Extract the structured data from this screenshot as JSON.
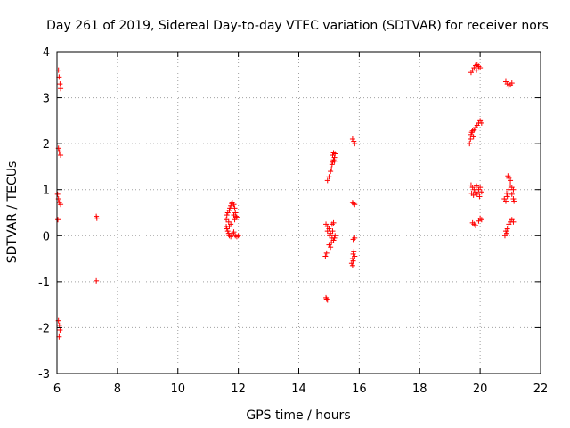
{
  "chart_data": {
    "type": "scatter",
    "title": "Day 261 of 2019, Sidereal Day-to-day VTEC variation (SDTVAR) for receiver nors",
    "xlabel": "GPS time / hours",
    "ylabel": "SDTVAR / TECUs",
    "xlim": [
      6,
      22
    ],
    "ylim": [
      -3,
      4
    ],
    "xticks": [
      "6",
      "8",
      "10",
      "12",
      "14",
      "16",
      "18",
      "20",
      "22"
    ],
    "yticks": [
      "-3",
      "-2",
      "-1",
      "0",
      "1",
      "2",
      "3",
      "4"
    ],
    "grid": true,
    "marker": "+",
    "color": "#ff0000",
    "series": [
      {
        "name": "SDTVAR",
        "points": [
          [
            6.05,
            3.6
          ],
          [
            6.07,
            3.45
          ],
          [
            6.1,
            3.3
          ],
          [
            6.12,
            3.2
          ],
          [
            6.05,
            1.9
          ],
          [
            6.08,
            1.82
          ],
          [
            6.12,
            1.75
          ],
          [
            6.02,
            0.9
          ],
          [
            6.05,
            0.8
          ],
          [
            6.08,
            0.72
          ],
          [
            6.12,
            0.68
          ],
          [
            6.03,
            0.35
          ],
          [
            6.05,
            -1.85
          ],
          [
            6.08,
            -1.95
          ],
          [
            6.1,
            -2.05
          ],
          [
            6.07,
            -2.2
          ],
          [
            7.3,
            0.42
          ],
          [
            7.32,
            0.38
          ],
          [
            7.3,
            -0.98
          ],
          [
            11.6,
            0.35
          ],
          [
            11.62,
            0.45
          ],
          [
            11.65,
            0.5
          ],
          [
            11.7,
            0.55
          ],
          [
            11.72,
            0.6
          ],
          [
            11.75,
            0.65
          ],
          [
            11.78,
            0.7
          ],
          [
            11.8,
            0.72
          ],
          [
            11.85,
            0.68
          ],
          [
            11.88,
            0.6
          ],
          [
            11.9,
            0.5
          ],
          [
            11.85,
            0.45
          ],
          [
            11.92,
            0.42
          ],
          [
            11.95,
            0.4
          ],
          [
            11.88,
            0.35
          ],
          [
            11.62,
            0.15
          ],
          [
            11.65,
            0.1
          ],
          [
            11.68,
            0.05
          ],
          [
            11.7,
            0.0
          ],
          [
            11.75,
            -0.02
          ],
          [
            11.8,
            0.05
          ],
          [
            11.85,
            0.08
          ],
          [
            11.9,
            0.0
          ],
          [
            11.95,
            -0.02
          ],
          [
            12.0,
            0.0
          ],
          [
            11.7,
            0.2
          ],
          [
            11.75,
            0.25
          ],
          [
            11.6,
            0.2
          ],
          [
            11.68,
            0.3
          ],
          [
            14.9,
            -1.35
          ],
          [
            14.95,
            -1.4
          ],
          [
            14.92,
            -1.38
          ],
          [
            14.88,
            -0.45
          ],
          [
            14.92,
            -0.38
          ],
          [
            14.9,
            0.25
          ],
          [
            14.95,
            0.2
          ],
          [
            15.0,
            0.15
          ],
          [
            15.05,
            0.05
          ],
          [
            15.1,
            -0.05
          ],
          [
            15.15,
            -0.1
          ],
          [
            15.2,
            0.0
          ],
          [
            15.08,
            -0.15
          ],
          [
            15.0,
            -0.2
          ],
          [
            14.95,
            0.1
          ],
          [
            15.12,
            0.1
          ],
          [
            15.18,
            -0.05
          ],
          [
            15.05,
            -0.25
          ],
          [
            15.1,
            0.25
          ],
          [
            15.15,
            0.28
          ],
          [
            15.02,
            0.0
          ],
          [
            14.95,
            1.2
          ],
          [
            15.0,
            1.28
          ],
          [
            15.05,
            1.4
          ],
          [
            15.08,
            1.45
          ],
          [
            15.1,
            1.55
          ],
          [
            15.12,
            1.6
          ],
          [
            15.15,
            1.65
          ],
          [
            15.18,
            1.7
          ],
          [
            15.12,
            1.75
          ],
          [
            15.15,
            1.8
          ],
          [
            15.2,
            1.78
          ],
          [
            15.18,
            1.62
          ],
          [
            15.75,
            -0.6
          ],
          [
            15.78,
            -0.5
          ],
          [
            15.8,
            -0.4
          ],
          [
            15.82,
            -0.35
          ],
          [
            15.85,
            -0.45
          ],
          [
            15.8,
            -0.55
          ],
          [
            15.78,
            -0.65
          ],
          [
            15.85,
            -0.05
          ],
          [
            15.8,
            -0.08
          ],
          [
            15.78,
            0.72
          ],
          [
            15.82,
            0.7
          ],
          [
            15.85,
            0.68
          ],
          [
            15.78,
            2.1
          ],
          [
            15.82,
            2.05
          ],
          [
            15.85,
            2.0
          ],
          [
            19.7,
            3.55
          ],
          [
            19.75,
            3.6
          ],
          [
            19.8,
            3.65
          ],
          [
            19.85,
            3.7
          ],
          [
            19.9,
            3.72
          ],
          [
            19.95,
            3.68
          ],
          [
            20.0,
            3.65
          ],
          [
            19.88,
            3.6
          ],
          [
            19.65,
            2.0
          ],
          [
            19.68,
            2.1
          ],
          [
            19.7,
            2.2
          ],
          [
            19.72,
            2.25
          ],
          [
            19.75,
            2.28
          ],
          [
            19.8,
            2.3
          ],
          [
            19.85,
            2.35
          ],
          [
            19.9,
            2.4
          ],
          [
            19.95,
            2.45
          ],
          [
            20.0,
            2.5
          ],
          [
            20.05,
            2.45
          ],
          [
            19.78,
            2.15
          ],
          [
            19.7,
            1.1
          ],
          [
            19.75,
            1.05
          ],
          [
            19.8,
            1.0
          ],
          [
            19.85,
            0.95
          ],
          [
            19.9,
            0.9
          ],
          [
            19.95,
            1.0
          ],
          [
            20.0,
            1.05
          ],
          [
            20.05,
            0.95
          ],
          [
            19.78,
            0.88
          ],
          [
            19.88,
            1.08
          ],
          [
            19.72,
            0.92
          ],
          [
            19.98,
            0.85
          ],
          [
            19.75,
            0.28
          ],
          [
            19.8,
            0.25
          ],
          [
            19.85,
            0.22
          ],
          [
            19.95,
            0.32
          ],
          [
            20.0,
            0.38
          ],
          [
            20.05,
            0.35
          ],
          [
            20.85,
            3.35
          ],
          [
            20.9,
            3.3
          ],
          [
            20.95,
            3.25
          ],
          [
            21.0,
            3.28
          ],
          [
            21.05,
            3.32
          ],
          [
            20.8,
            0.8
          ],
          [
            20.85,
            0.75
          ],
          [
            20.9,
            0.85
          ],
          [
            20.95,
            1.0
          ],
          [
            21.0,
            1.1
          ],
          [
            21.05,
            1.05
          ],
          [
            21.1,
            1.0
          ],
          [
            20.92,
            1.3
          ],
          [
            20.95,
            1.25
          ],
          [
            21.0,
            1.2
          ],
          [
            21.05,
            0.9
          ],
          [
            21.1,
            0.8
          ],
          [
            21.12,
            0.75
          ],
          [
            20.88,
            0.92
          ],
          [
            20.85,
            0.1
          ],
          [
            20.9,
            0.15
          ],
          [
            20.95,
            0.25
          ],
          [
            21.0,
            0.3
          ],
          [
            21.05,
            0.35
          ],
          [
            21.1,
            0.3
          ],
          [
            20.82,
            0.0
          ],
          [
            20.88,
            0.05
          ]
        ]
      }
    ]
  }
}
